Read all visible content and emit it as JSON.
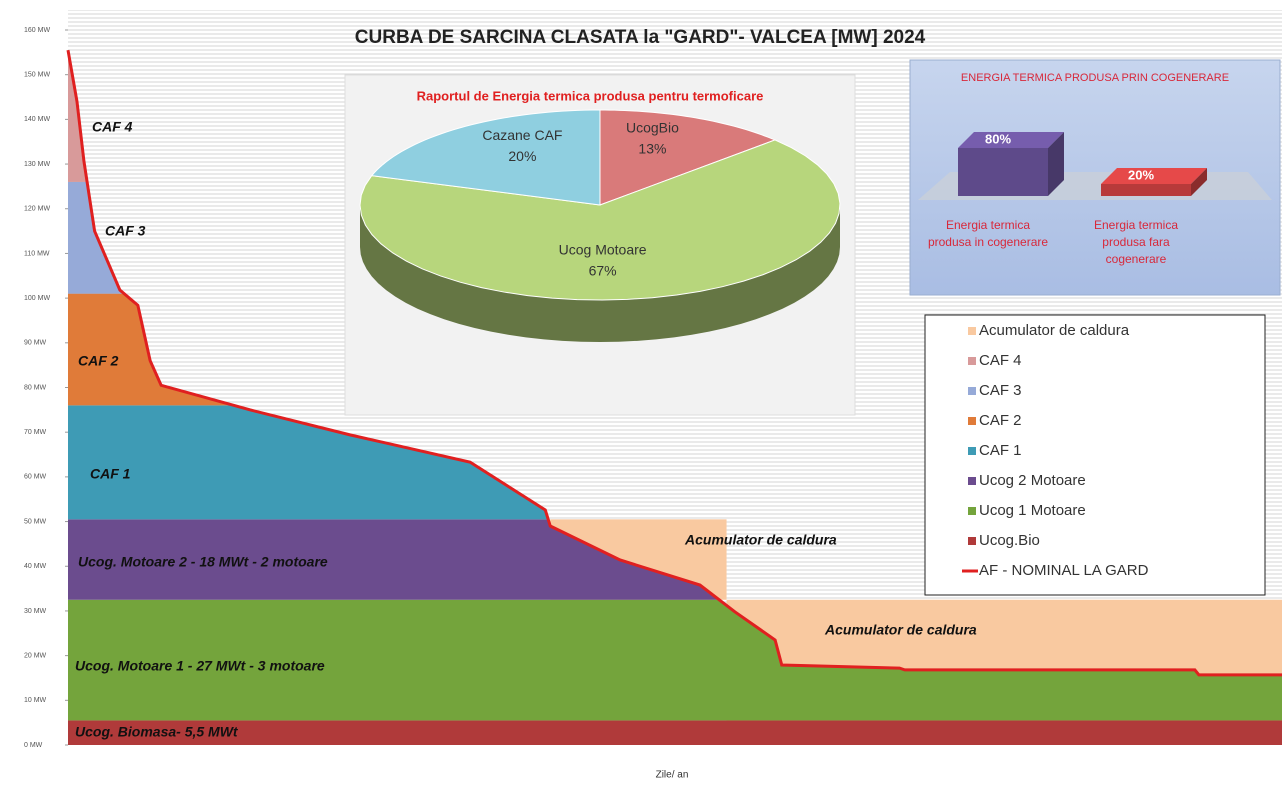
{
  "chart_data": {
    "type": "area",
    "title": "CURBA DE SARCINA CLASATA  la \"GARD\"- VALCEA [MW] 2024",
    "xlabel": "Zile/ an",
    "xlim": [
      0,
      365
    ],
    "ylim": [
      0,
      160
    ],
    "yticks": [
      {
        "value": 0,
        "label": "0 MW"
      },
      {
        "value": 10,
        "label": "10 MW"
      },
      {
        "value": 20,
        "label": "20 MW"
      },
      {
        "value": 30,
        "label": "30 MW"
      },
      {
        "value": 40,
        "label": "40 MW"
      },
      {
        "value": 50,
        "label": "50 MW"
      },
      {
        "value": 60,
        "label": "60 MW"
      },
      {
        "value": 70,
        "label": "70 MW"
      },
      {
        "value": 80,
        "label": "80 MW"
      },
      {
        "value": 90,
        "label": "90 MW"
      },
      {
        "value": 100,
        "label": "100 MW"
      },
      {
        "value": 110,
        "label": "110 MW"
      },
      {
        "value": 120,
        "label": "120 MW"
      },
      {
        "value": 130,
        "label": "130 MW"
      },
      {
        "value": 140,
        "label": "140 MW"
      },
      {
        "value": 150,
        "label": "150 MW"
      },
      {
        "value": 160,
        "label": "160 MW"
      }
    ],
    "bands": [
      {
        "name": "Ucog.Bio",
        "color": "#b03a3a",
        "value": 5.5
      },
      {
        "name": "Ucog 1 Motoare",
        "color": "#74a43c",
        "value": 27
      },
      {
        "name": "Ucog 2 Motoare",
        "color": "#6b4c8e",
        "value": 18
      },
      {
        "name": "CAF 1",
        "color": "#3e9bb5",
        "value": 25.5
      },
      {
        "name": "CAF 2",
        "color": "#e07b39",
        "value": 25
      },
      {
        "name": "CAF 3",
        "color": "#96aad8",
        "value": 25
      },
      {
        "name": "CAF 4",
        "color": "#d89a9a",
        "value": 30
      }
    ],
    "accumulator": {
      "name": "Acumulator de caldura",
      "color": "#f9c9a0",
      "blocks": [
        {
          "x": [
            145,
            198
          ],
          "values": [
            32.5,
            50.5
          ]
        },
        {
          "x": [
            198,
            365
          ],
          "values": [
            0,
            32.5
          ]
        }
      ]
    },
    "line": {
      "name": "AF - NOMINAL LA GARD",
      "color": "#e02020",
      "x": [
        0,
        2.7,
        4.8,
        8,
        15.6,
        21,
        24.7,
        28,
        54.7,
        84.8,
        120.9,
        143.5,
        145,
        166,
        190,
        200.5,
        212.6,
        214.6,
        250,
        251.6,
        338.8,
        340,
        365
      ],
      "values": [
        155.5,
        144,
        130.6,
        115,
        101.8,
        98.4,
        86,
        80.5,
        75,
        69.4,
        63.3,
        52.6,
        49,
        41.4,
        35.8,
        29.8,
        23.5,
        17.9,
        17.2,
        16.8,
        16.8,
        15.7,
        15.7
      ]
    },
    "band_labels": [
      "CAF 4",
      "CAF 3",
      "CAF 2",
      "CAF 1",
      "Ucog. Motoare 2 - 18 MWt - 2 motoare",
      "Ucog. Motoare 1 - 27 MWt - 3 motoare",
      "Ucog. Biomasa- 5,5 MWt",
      "Acumulator de caldura",
      "Acumulator de caldura"
    ],
    "pie": {
      "type": "pie",
      "title": "Raportul de Energia termica produsa pentru termoficare",
      "categories": [
        "UcogBio",
        "Ucog Motoare",
        "Cazane CAF"
      ],
      "values": [
        13,
        67,
        20
      ],
      "value_labels": [
        "13%",
        "67%",
        "20%"
      ],
      "colors": [
        "#d97a7a",
        "#b7d67c",
        "#8fcfe0"
      ]
    },
    "inset": {
      "type": "bar",
      "title": "ENERGIA TERMICA PRODUSA PRIN COGENERARE",
      "categories": [
        "Energia termica produsa in cogenerare",
        "Energia termica produsa fara cogenerare"
      ],
      "values": [
        80,
        20
      ],
      "value_labels": [
        "80%",
        "20%"
      ],
      "colors": [
        "#5e4a8a",
        "#b83a3a"
      ]
    }
  }
}
